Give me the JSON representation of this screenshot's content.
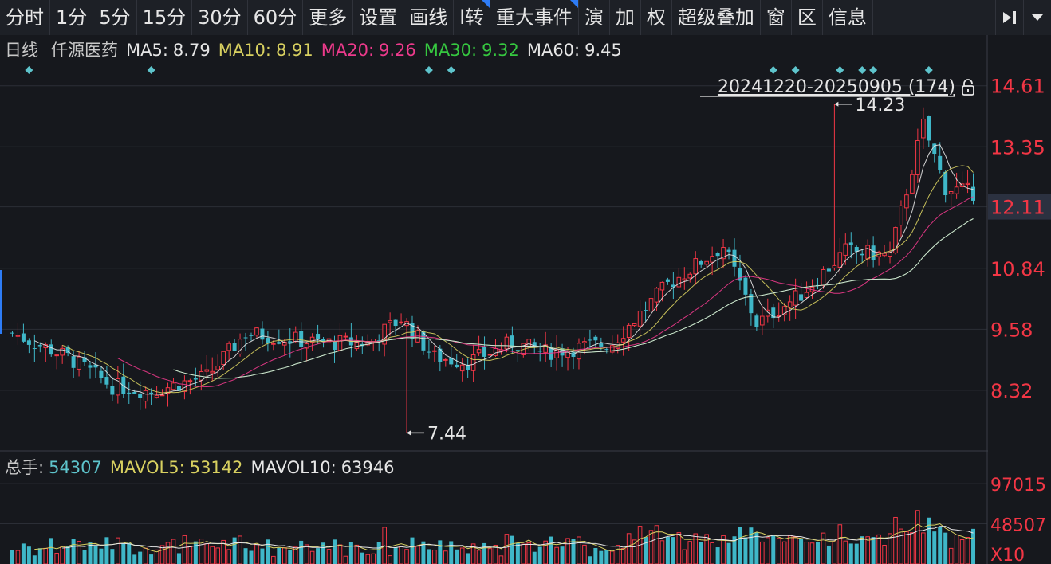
{
  "toolbar": {
    "tabs": [
      {
        "label": "分时"
      },
      {
        "label": "1分"
      },
      {
        "label": "5分"
      },
      {
        "label": "15分"
      },
      {
        "label": "30分"
      },
      {
        "label": "60分"
      },
      {
        "label": "更多"
      },
      {
        "label": "设置"
      },
      {
        "label": "画线"
      },
      {
        "label": "l转"
      },
      {
        "label": "重大事件"
      },
      {
        "label": "演"
      },
      {
        "label": "加"
      },
      {
        "label": "权"
      },
      {
        "label": "超级叠加"
      },
      {
        "label": "窗"
      },
      {
        "label": "区"
      },
      {
        "label": "信息"
      }
    ],
    "icons": [
      "expand-right-icon",
      "dropdown-arrow-icon"
    ]
  },
  "info_bar": {
    "period": "日线",
    "stock_name": "仟源医药",
    "ma": [
      {
        "label": "MA5:",
        "value": "8.79",
        "color": "#e6e6e6"
      },
      {
        "label": "MA10:",
        "value": "8.91",
        "color": "#d8d060"
      },
      {
        "label": "MA20:",
        "value": "9.26",
        "color": "#ee3a8c"
      },
      {
        "label": "MA30:",
        "value": "9.32",
        "color": "#36c840"
      },
      {
        "label": "MA60:",
        "value": "9.45",
        "color": "#e6e6e6"
      }
    ]
  },
  "range_label": "20241220-20250905 (174)",
  "price_axis": {
    "ticks": [
      "14.61",
      "13.35",
      "12.11",
      "10.84",
      "9.58",
      "8.32"
    ],
    "highlight": "12.11"
  },
  "annotations": {
    "max_label": "14.23",
    "min_label": "7.44"
  },
  "volume_bar": {
    "label": "总手:",
    "value": "54307",
    "mavol5_label": "MAVOL5:",
    "mavol5_value": "53142",
    "mavol10_label": "MAVOL10:",
    "mavol10_value": "63946"
  },
  "volume_axis": {
    "ticks": [
      "97015",
      "48507"
    ],
    "unit": "X10"
  },
  "colors": {
    "up": "#f23645",
    "down": "#3fb7c8",
    "bg": "#16181d",
    "grid": "#2b2e36"
  },
  "chart_data": {
    "type": "candlestick",
    "count": 174,
    "period": "20241220-20250905",
    "ylim": [
      7.1,
      15.0
    ],
    "volume_ylim": [
      0,
      100000
    ],
    "anchors": [
      {
        "i": 0,
        "p": 9.5
      },
      {
        "i": 10,
        "p": 9.0
      },
      {
        "i": 18,
        "p": 8.4
      },
      {
        "i": 25,
        "p": 8.3
      },
      {
        "i": 35,
        "p": 8.6
      },
      {
        "i": 42,
        "p": 9.5
      },
      {
        "i": 55,
        "p": 9.3
      },
      {
        "i": 64,
        "p": 9.3
      },
      {
        "i": 70,
        "p": 9.8
      },
      {
        "i": 76,
        "p": 9.0
      },
      {
        "i": 82,
        "p": 8.9
      },
      {
        "i": 90,
        "p": 9.3
      },
      {
        "i": 96,
        "p": 9.1
      },
      {
        "i": 108,
        "p": 9.3
      },
      {
        "i": 118,
        "p": 10.5
      },
      {
        "i": 128,
        "p": 11.3
      },
      {
        "i": 134,
        "p": 9.7
      },
      {
        "i": 142,
        "p": 10.3
      },
      {
        "i": 150,
        "p": 11.2
      },
      {
        "i": 158,
        "p": 11.1
      },
      {
        "i": 164,
        "p": 13.8
      },
      {
        "i": 168,
        "p": 12.5
      },
      {
        "i": 173,
        "p": 12.4
      }
    ],
    "max": {
      "index": 148,
      "value": 14.23
    },
    "min": {
      "index": 71,
      "value": 7.44
    },
    "event_markers": [
      3,
      25,
      75,
      79,
      137,
      141,
      149,
      153,
      155,
      165
    ]
  }
}
